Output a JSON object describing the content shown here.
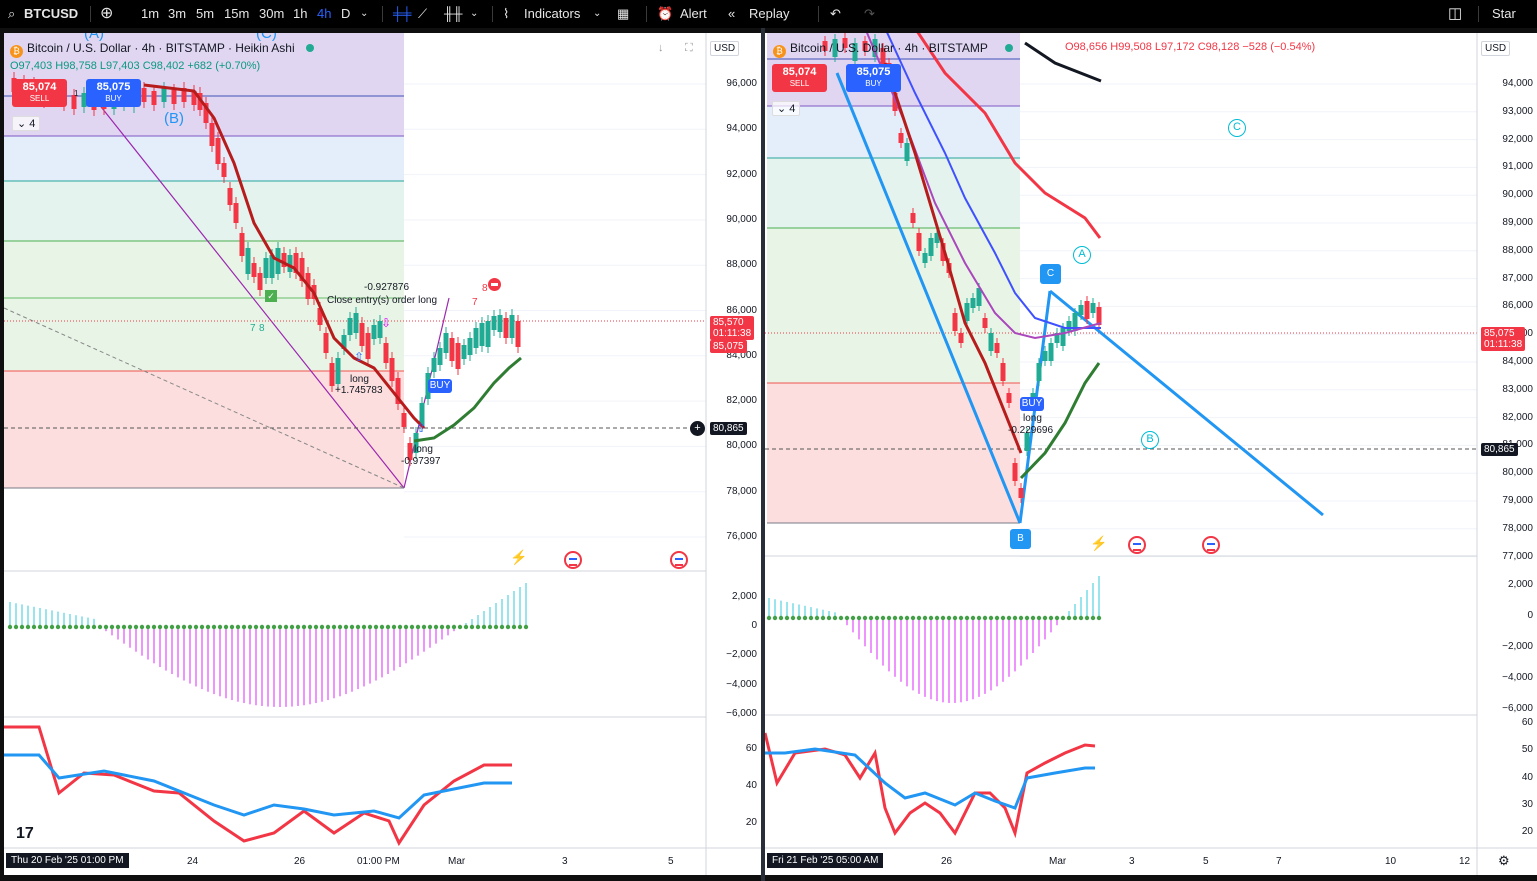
{
  "toolbar": {
    "symbol": "BTCUSD",
    "intervals": [
      "1m",
      "3m",
      "5m",
      "15m",
      "30m",
      "1h",
      "4h",
      "D"
    ],
    "active_interval": "4h",
    "indicators_label": "Indicators",
    "alert_label": "Alert",
    "replay_label": "Replay",
    "star_label": "Star"
  },
  "left_pane": {
    "title": "Bitcoin / U.S. Dollar · 4h · BITSTAMP · Heikin Ashi",
    "ohlc": "O97,403 H98,758 L97,403 C98,402 +682 (+0.70%)",
    "sell_price": "85,074",
    "sell_label": "SELL",
    "buy_price": "85,075",
    "buy_label": "BUY",
    "spread": "1",
    "indicator_count": "4",
    "currency": "USD",
    "price_ticks": [
      "96,000",
      "94,000",
      "92,000",
      "90,000",
      "88,000",
      "86,000",
      "84,000",
      "82,000",
      "80,000",
      "78,000",
      "76,000"
    ],
    "price_tag_last": "85,570",
    "price_tag_timer": "01:11:38",
    "price_tag_buy": "85,075",
    "crosshair_price": "80,865",
    "macd_ticks": [
      "2,000",
      "0",
      "−2,000",
      "−4,000",
      "−6,000"
    ],
    "rsi_ticks": [
      "60",
      "40",
      "20"
    ],
    "time_labels": [
      "24",
      "26",
      "01:00 PM",
      "Mar",
      "3",
      "5"
    ],
    "time_cursor": "Thu 20 Feb '25   01:00 PM",
    "notes": {
      "close_value": "-0.927876",
      "close_text": "Close entry(s) order long",
      "long1_label": "long",
      "long1_value": "+1.745783",
      "long2_label": "long",
      "long2_value": "-0.97397",
      "buy_marker": "BUY",
      "wave_b": "(B)",
      "wave_c": "(C)",
      "wave_a": "(A)",
      "num7a": "7",
      "num8a": "8",
      "num7b": "7",
      "num8b": "8"
    }
  },
  "right_pane": {
    "title": "Bitcoin / U.S. Dollar · 4h · BITSTAMP",
    "ohlc": "O98,656 H99,508 L97,172 C98,128 −528 (−0.54%)",
    "sell_price": "85,074",
    "sell_label": "SELL",
    "buy_price": "85,075",
    "buy_label": "BUY",
    "indicator_count": "4",
    "currency": "USD",
    "price_ticks": [
      "94,000",
      "93,000",
      "92,000",
      "91,000",
      "90,000",
      "89,000",
      "88,000",
      "87,000",
      "86,000",
      "85,000",
      "84,000",
      "83,000",
      "82,000",
      "81,000",
      "80,000",
      "79,000",
      "78,000",
      "77,000"
    ],
    "price_tag_buy": "85,075",
    "price_tag_timer": "01:11:38",
    "crosshair_price": "80,865",
    "macd_ticks": [
      "2,000",
      "0",
      "−2,000",
      "−4,000",
      "−6,000"
    ],
    "rsi_ticks": [
      "60",
      "50",
      "40",
      "30",
      "20"
    ],
    "time_labels": [
      "26",
      "Mar",
      "3",
      "5",
      "7",
      "10",
      "12"
    ],
    "time_cursor": "Fri 21 Feb '25   05:00 AM",
    "notes": {
      "long_label": "long",
      "long_value": "-0.229696",
      "buy_marker": "BUY",
      "c_badge": "C",
      "b_badge": "B",
      "circle_a": "A",
      "circle_b": "B",
      "circle_c": "C"
    }
  },
  "colors": {
    "up": "#22ab94",
    "down": "#f23645",
    "accent": "#2962ff",
    "wave": "#2196f3"
  }
}
